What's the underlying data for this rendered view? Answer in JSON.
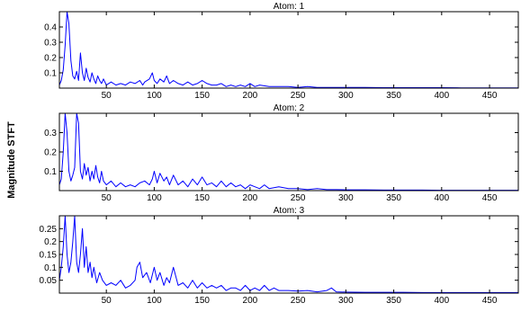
{
  "figure": {
    "ylabel": "Magnitude STFT",
    "line_color": "#0000ff"
  },
  "chart_data": [
    {
      "type": "line",
      "title": "Atom: 1",
      "xlim": [
        1,
        480
      ],
      "ylim": [
        0,
        0.5
      ],
      "xticks": [
        50,
        100,
        150,
        200,
        250,
        300,
        350,
        400,
        450
      ],
      "yticks": [
        0.1,
        0.2,
        0.3,
        0.4
      ],
      "ytick_labels": [
        "0.1",
        "0.2",
        "0.3",
        "0.4"
      ],
      "series": [
        {
          "x": [
            1,
            3,
            5,
            7,
            9,
            11,
            13,
            15,
            17,
            19,
            21,
            23,
            25,
            27,
            29,
            31,
            33,
            35,
            37,
            39,
            41,
            43,
            45,
            47,
            50,
            55,
            60,
            65,
            70,
            75,
            80,
            85,
            88,
            90,
            95,
            98,
            100,
            103,
            106,
            110,
            113,
            116,
            120,
            125,
            130,
            135,
            140,
            145,
            150,
            155,
            160,
            165,
            170,
            175,
            180,
            185,
            190,
            195,
            200,
            205,
            210,
            220,
            230,
            240,
            250,
            260,
            270,
            280,
            290,
            300,
            320,
            340,
            360,
            380,
            400,
            420,
            440,
            460,
            480
          ],
          "y": [
            0.02,
            0.05,
            0.12,
            0.28,
            0.5,
            0.42,
            0.18,
            0.08,
            0.06,
            0.11,
            0.05,
            0.23,
            0.1,
            0.05,
            0.13,
            0.07,
            0.04,
            0.1,
            0.06,
            0.03,
            0.08,
            0.05,
            0.03,
            0.06,
            0.02,
            0.04,
            0.02,
            0.03,
            0.02,
            0.04,
            0.03,
            0.05,
            0.02,
            0.04,
            0.06,
            0.1,
            0.05,
            0.03,
            0.06,
            0.04,
            0.08,
            0.03,
            0.05,
            0.03,
            0.02,
            0.04,
            0.02,
            0.03,
            0.05,
            0.03,
            0.02,
            0.02,
            0.03,
            0.01,
            0.02,
            0.01,
            0.02,
            0.01,
            0.03,
            0.01,
            0.02,
            0.01,
            0.01,
            0.01,
            0.005,
            0.01,
            0.005,
            0.005,
            0.005,
            0.004,
            0.004,
            0.003,
            0.003,
            0.003,
            0.003,
            0.002,
            0.002,
            0.002,
            0.002
          ]
        }
      ]
    },
    {
      "type": "line",
      "title": "Atom: 2",
      "xlim": [
        1,
        480
      ],
      "ylim": [
        0,
        0.4
      ],
      "xticks": [
        50,
        100,
        150,
        200,
        250,
        300,
        350,
        400,
        450
      ],
      "yticks": [
        0.1,
        0.2,
        0.3
      ],
      "ytick_labels": [
        "0.1",
        "0.2",
        "0.3"
      ],
      "series": [
        {
          "x": [
            1,
            3,
            5,
            7,
            9,
            11,
            13,
            15,
            17,
            19,
            21,
            23,
            25,
            27,
            29,
            31,
            33,
            35,
            37,
            39,
            41,
            43,
            45,
            47,
            50,
            55,
            60,
            65,
            70,
            75,
            80,
            85,
            90,
            95,
            98,
            100,
            103,
            106,
            110,
            113,
            116,
            120,
            125,
            130,
            135,
            140,
            145,
            150,
            155,
            160,
            165,
            170,
            175,
            180,
            185,
            190,
            195,
            200,
            205,
            210,
            215,
            220,
            230,
            240,
            250,
            260,
            270,
            280,
            290,
            300,
            320,
            340,
            360,
            380,
            400,
            420,
            440,
            460,
            480
          ],
          "y": [
            0.03,
            0.06,
            0.2,
            0.45,
            0.3,
            0.1,
            0.05,
            0.08,
            0.12,
            0.4,
            0.35,
            0.1,
            0.06,
            0.14,
            0.08,
            0.12,
            0.05,
            0.1,
            0.06,
            0.13,
            0.07,
            0.04,
            0.1,
            0.05,
            0.03,
            0.05,
            0.02,
            0.04,
            0.02,
            0.03,
            0.02,
            0.04,
            0.05,
            0.03,
            0.06,
            0.1,
            0.04,
            0.09,
            0.05,
            0.07,
            0.03,
            0.08,
            0.03,
            0.05,
            0.02,
            0.06,
            0.03,
            0.07,
            0.03,
            0.04,
            0.02,
            0.05,
            0.02,
            0.04,
            0.02,
            0.03,
            0.01,
            0.03,
            0.02,
            0.01,
            0.03,
            0.01,
            0.02,
            0.01,
            0.01,
            0.005,
            0.01,
            0.005,
            0.005,
            0.004,
            0.004,
            0.003,
            0.003,
            0.003,
            0.002,
            0.002,
            0.002,
            0.002,
            0.002
          ]
        }
      ]
    },
    {
      "type": "line",
      "title": "Atom: 3",
      "xlim": [
        1,
        480
      ],
      "ylim": [
        0,
        0.3
      ],
      "xticks": [
        50,
        100,
        150,
        200,
        250,
        300,
        350,
        400,
        450
      ],
      "yticks": [
        0.05,
        0.1,
        0.15,
        0.2,
        0.25
      ],
      "ytick_labels": [
        "0.05",
        "0.1",
        "0.15",
        "0.2",
        "0.25"
      ],
      "series": [
        {
          "x": [
            1,
            3,
            5,
            7,
            9,
            11,
            13,
            15,
            17,
            19,
            21,
            23,
            25,
            27,
            29,
            31,
            33,
            35,
            37,
            40,
            43,
            46,
            50,
            55,
            60,
            65,
            70,
            75,
            80,
            82,
            85,
            88,
            92,
            96,
            100,
            103,
            106,
            110,
            113,
            116,
            120,
            125,
            130,
            135,
            140,
            145,
            150,
            155,
            160,
            165,
            170,
            175,
            180,
            185,
            190,
            195,
            200,
            205,
            210,
            215,
            220,
            225,
            230,
            240,
            250,
            260,
            270,
            280,
            285,
            290,
            300,
            320,
            340,
            360,
            380,
            400,
            420,
            440,
            460,
            480
          ],
          "y": [
            0.05,
            0.1,
            0.18,
            0.3,
            0.15,
            0.08,
            0.12,
            0.2,
            0.3,
            0.12,
            0.08,
            0.15,
            0.25,
            0.1,
            0.18,
            0.08,
            0.12,
            0.06,
            0.1,
            0.04,
            0.08,
            0.05,
            0.03,
            0.04,
            0.03,
            0.05,
            0.02,
            0.03,
            0.05,
            0.1,
            0.12,
            0.06,
            0.08,
            0.04,
            0.1,
            0.05,
            0.08,
            0.03,
            0.06,
            0.04,
            0.1,
            0.03,
            0.04,
            0.02,
            0.05,
            0.02,
            0.04,
            0.02,
            0.03,
            0.02,
            0.03,
            0.01,
            0.02,
            0.02,
            0.01,
            0.03,
            0.01,
            0.02,
            0.01,
            0.03,
            0.01,
            0.02,
            0.01,
            0.01,
            0.008,
            0.01,
            0.005,
            0.01,
            0.02,
            0.005,
            0.004,
            0.003,
            0.003,
            0.003,
            0.002,
            0.002,
            0.002,
            0.002,
            0.002,
            0.002
          ]
        }
      ]
    }
  ]
}
